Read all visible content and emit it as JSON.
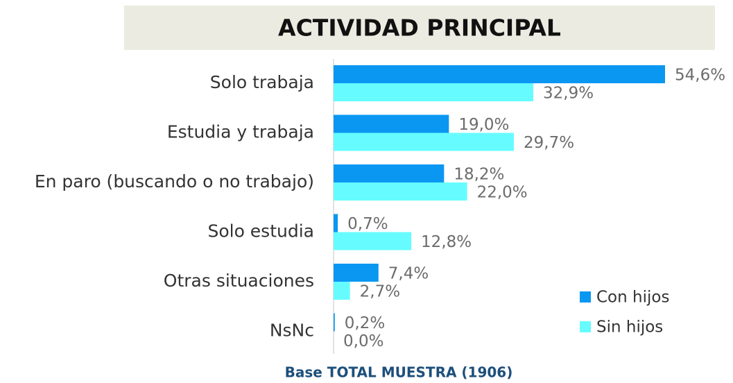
{
  "chart_data": {
    "type": "hbar",
    "title": "ACTIVIDAD PRINCIPAL",
    "footnote": "Base TOTAL MUESTRA (1906)",
    "categories": [
      "Solo trabaja",
      "Estudia y trabaja",
      "En paro (buscando o no trabajo)",
      "Solo estudia",
      "Otras situaciones",
      "NsNc"
    ],
    "series": [
      {
        "name": "Con hijos",
        "color": "#0a97f2",
        "values": [
          54.6,
          19.0,
          18.2,
          0.7,
          7.4,
          0.2
        ],
        "value_labels": [
          "54,6%",
          "19,0%",
          "18,2%",
          "0,7%",
          "7,4%",
          "0,2%"
        ]
      },
      {
        "name": "Sin hijos",
        "color": "#66fcff",
        "values": [
          32.9,
          29.7,
          22.0,
          12.8,
          2.7,
          0.0
        ],
        "value_labels": [
          "32,9%",
          "29,7%",
          "22,0%",
          "12,8%",
          "2,7%",
          "0,0%"
        ]
      }
    ],
    "legend": "lower right"
  }
}
